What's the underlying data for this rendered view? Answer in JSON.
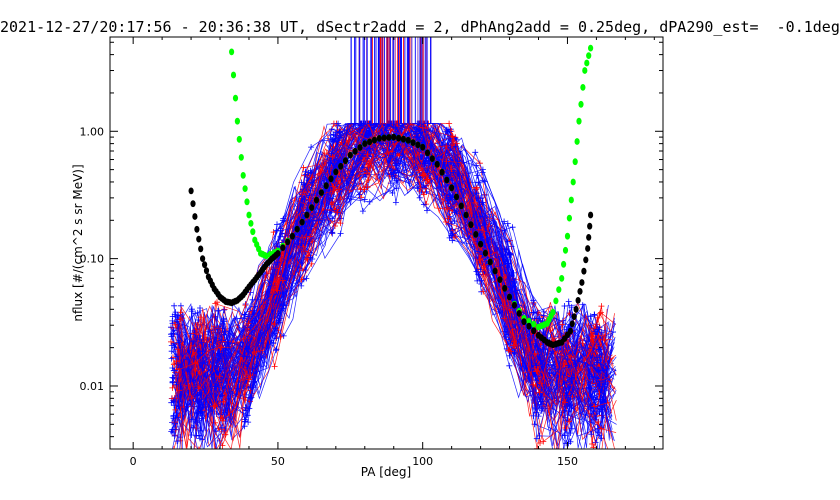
{
  "chart_data": {
    "type": "line",
    "title": "2021-12-27/20:17:56 - 20:36:38 UT, dSectr2add = 2, dPhAng2add = 0.25deg, dPA290_est=  -0.1deg",
    "xlabel": "PA [deg]",
    "ylabel": "nflux [#/(cm^2 s sr MeV)]",
    "xlim": [
      -8,
      183
    ],
    "ylim": [
      0.0032,
      5.5
    ],
    "yscale": "log",
    "x_ticks": [
      0,
      50,
      100,
      150
    ],
    "x_tick_labels": [
      "0",
      "50",
      "100",
      "150"
    ],
    "y_ticks": [
      0.01,
      0.1,
      1.0
    ],
    "y_tick_labels": [
      "0.01",
      "0.10",
      "1.00"
    ],
    "grid": false,
    "colors": {
      "red": "#ff0000",
      "blue": "#0000ff",
      "green": "#00ff00",
      "black": "#000000",
      "purple": "#7f3fbf"
    },
    "series": [
      {
        "color": "green",
        "style": "dots",
        "x": [
          34,
          36,
          38,
          40,
          42,
          44,
          46,
          50,
          55,
          60,
          65,
          70,
          75,
          80,
          85,
          90,
          95,
          100,
          105,
          110,
          115,
          120,
          125,
          130,
          135,
          140,
          143,
          145,
          148,
          150,
          152,
          154,
          156,
          158
        ],
        "y": [
          4.2,
          1.2,
          0.45,
          0.22,
          0.14,
          0.11,
          0.105,
          0.115,
          0.15,
          0.22,
          0.33,
          0.48,
          0.65,
          0.8,
          0.88,
          0.9,
          0.85,
          0.75,
          0.55,
          0.36,
          0.22,
          0.13,
          0.08,
          0.05,
          0.034,
          0.029,
          0.031,
          0.038,
          0.07,
          0.15,
          0.4,
          1.2,
          3.0,
          4.5
        ]
      },
      {
        "color": "black",
        "style": "dots",
        "x": [
          20,
          22,
          24,
          26,
          28,
          30,
          32,
          34,
          36,
          38,
          40,
          42,
          44,
          46,
          48,
          50,
          55,
          60,
          65,
          70,
          75,
          80,
          85,
          90,
          95,
          100,
          105,
          110,
          115,
          120,
          125,
          130,
          135,
          140,
          143,
          145,
          148,
          151,
          153,
          155,
          157,
          158
        ],
        "y": [
          0.34,
          0.17,
          0.1,
          0.072,
          0.058,
          0.05,
          0.046,
          0.045,
          0.047,
          0.052,
          0.06,
          0.068,
          0.078,
          0.09,
          0.1,
          0.11,
          0.15,
          0.22,
          0.33,
          0.48,
          0.65,
          0.8,
          0.88,
          0.9,
          0.85,
          0.75,
          0.55,
          0.36,
          0.22,
          0.13,
          0.08,
          0.05,
          0.032,
          0.025,
          0.022,
          0.021,
          0.022,
          0.027,
          0.04,
          0.065,
          0.12,
          0.22
        ]
      }
    ]
  }
}
